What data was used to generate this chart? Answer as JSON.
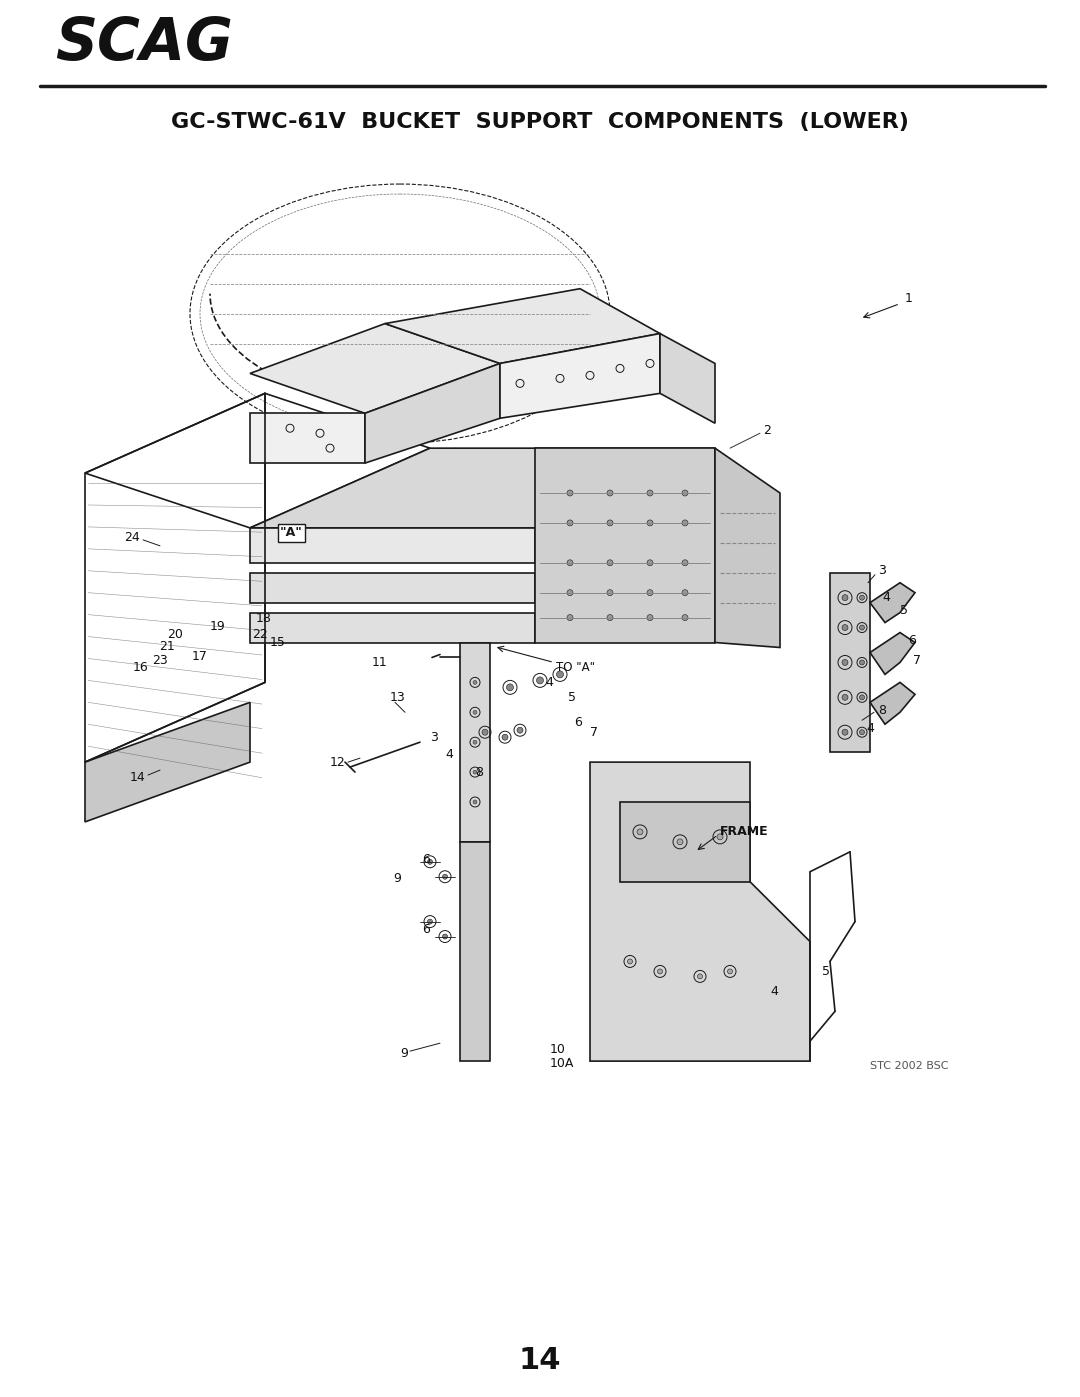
{
  "title": "GC-STWC-61V  BUCKET  SUPPORT  COMPONENTS  (LOWER)",
  "logo_text": "SCAG",
  "page_number": "14",
  "copyright": "STC 2002 BSC",
  "bg_color": "#ffffff",
  "line_color": "#1a1a1a",
  "title_fontsize": 16,
  "logo_fontsize": 42,
  "page_num_fontsize": 22,
  "copyright_fontsize": 8
}
